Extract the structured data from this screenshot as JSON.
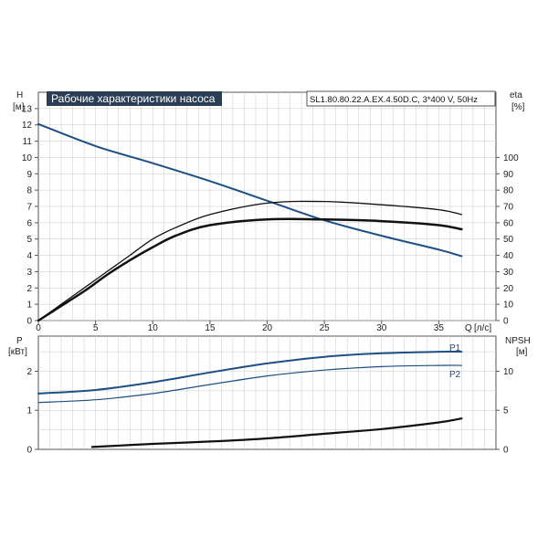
{
  "header": {
    "title": "Рабочие характеристики насоса",
    "model": "SL1.80.80.22.A.EX.4.50D.C, 3*400 V, 50Hz"
  },
  "colors": {
    "blue": "#1b4f86",
    "black": "#111111",
    "grid": "#c9c9c9",
    "frame": "#555555",
    "title_bg": "#2c3e55"
  },
  "chart_data": [
    {
      "type": "line",
      "name": "head-efficiency-chart",
      "x_axis": {
        "label": "Q",
        "unit": "[л/с]",
        "ticks": [
          0,
          5,
          10,
          15,
          20,
          25,
          30,
          35
        ],
        "range": [
          0,
          40
        ]
      },
      "y_axis_left": {
        "label": "H",
        "unit": "[м]",
        "ticks": [
          0,
          1,
          2,
          3,
          4,
          5,
          6,
          7,
          8,
          9,
          10,
          11,
          12,
          13
        ],
        "range": [
          0,
          14
        ]
      },
      "y_axis_right": {
        "label": "eta",
        "unit": "[%]",
        "ticks": [
          0,
          10,
          20,
          30,
          40,
          50,
          60,
          70,
          80,
          90,
          100
        ],
        "range": [
          0,
          140
        ]
      },
      "grid": true,
      "series": [
        {
          "id": "H",
          "axis": "left",
          "color": "blue",
          "width": 2,
          "points": [
            [
              0,
              12.05
            ],
            [
              5,
              10.7
            ],
            [
              10,
              9.65
            ],
            [
              15,
              8.55
            ],
            [
              20,
              7.35
            ],
            [
              25,
              6.15
            ],
            [
              30,
              5.2
            ],
            [
              35,
              4.35
            ],
            [
              37,
              3.95
            ]
          ]
        },
        {
          "id": "eta1",
          "axis": "right",
          "color": "black",
          "width": 1.3,
          "points": [
            [
              0,
              0
            ],
            [
              2,
              10
            ],
            [
              4,
              20
            ],
            [
              6,
              30
            ],
            [
              8,
              40
            ],
            [
              10,
              50
            ],
            [
              12,
              57
            ],
            [
              15,
              65
            ],
            [
              20,
              72
            ],
            [
              25,
              73
            ],
            [
              30,
              71
            ],
            [
              35,
              68
            ],
            [
              37,
              65
            ]
          ]
        },
        {
          "id": "eta2",
          "axis": "right",
          "color": "black",
          "width": 2.5,
          "points": [
            [
              0,
              0
            ],
            [
              2,
              9
            ],
            [
              4,
              18
            ],
            [
              6,
              28
            ],
            [
              8,
              37
            ],
            [
              10,
              45
            ],
            [
              12,
              52
            ],
            [
              15,
              58.5
            ],
            [
              20,
              62
            ],
            [
              25,
              62
            ],
            [
              30,
              61
            ],
            [
              35,
              58.5
            ],
            [
              37,
              56
            ]
          ]
        }
      ]
    },
    {
      "type": "line",
      "name": "power-npsh-chart",
      "x_axis": {
        "range": [
          0,
          40
        ]
      },
      "y_axis_left": {
        "label": "P",
        "unit": "[кВт]",
        "ticks": [
          0,
          1,
          2
        ],
        "range": [
          0,
          2.9
        ]
      },
      "y_axis_right": {
        "label": "NPSH",
        "unit": "[м]",
        "ticks": [
          0,
          5,
          10
        ],
        "range": [
          0,
          14.5
        ]
      },
      "grid": true,
      "series": [
        {
          "id": "P1",
          "label": "P1",
          "axis": "left",
          "color": "blue",
          "width": 2,
          "points": [
            [
              0,
              1.43
            ],
            [
              5,
              1.52
            ],
            [
              10,
              1.72
            ],
            [
              15,
              1.97
            ],
            [
              20,
              2.2
            ],
            [
              25,
              2.37
            ],
            [
              30,
              2.46
            ],
            [
              35,
              2.5
            ],
            [
              37,
              2.5
            ]
          ]
        },
        {
          "id": "P2",
          "label": "P2",
          "axis": "left",
          "color": "blue",
          "width": 1.2,
          "points": [
            [
              0,
              1.2
            ],
            [
              5,
              1.27
            ],
            [
              10,
              1.43
            ],
            [
              15,
              1.66
            ],
            [
              20,
              1.88
            ],
            [
              25,
              2.03
            ],
            [
              30,
              2.12
            ],
            [
              35,
              2.15
            ],
            [
              37,
              2.15
            ]
          ]
        },
        {
          "id": "NPSH",
          "axis": "right",
          "color": "black",
          "width": 2.2,
          "points": [
            [
              4.7,
              0.3
            ],
            [
              10,
              0.7
            ],
            [
              15,
              1.0
            ],
            [
              20,
              1.4
            ],
            [
              25,
              2.0
            ],
            [
              30,
              2.6
            ],
            [
              35,
              3.45
            ],
            [
              37,
              3.95
            ]
          ]
        }
      ]
    }
  ]
}
